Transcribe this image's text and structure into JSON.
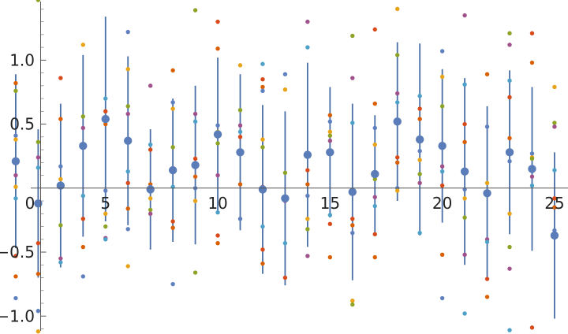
{
  "chart_data": {
    "type": "scatter",
    "title": "",
    "xlabel": "",
    "ylabel": "",
    "xlim": [
      0.3,
      25.6
    ],
    "ylim": [
      -1.14,
      1.47
    ],
    "x_ticks": [
      5,
      10,
      15,
      20,
      25
    ],
    "x_tick_labels": [
      "5",
      "10",
      "15",
      "20",
      "25"
    ],
    "y_ticks": [
      -1.0,
      -0.5,
      0.5,
      1.0
    ],
    "y_tick_labels": [
      "−1.0",
      "−0.5",
      "0.5",
      "1.0"
    ],
    "origin_label": "0",
    "grid": false,
    "legend": "none",
    "mean_color": "#5a7cb8",
    "errorbar_color": "#4a6ea6",
    "sample_colors": [
      "#d95f02",
      "#5e80bf",
      "#e8a317",
      "#8da325",
      "#a0518b",
      "#4da0c8",
      "#d84a1a"
    ],
    "means": {
      "x": [
        1,
        2,
        3,
        4,
        5,
        6,
        7,
        8,
        9,
        10,
        11,
        12,
        13,
        14,
        15,
        16,
        17,
        18,
        19,
        20,
        21,
        22,
        23,
        24,
        25
      ],
      "y": [
        0.21,
        -0.12,
        0.02,
        0.33,
        0.54,
        0.37,
        -0.01,
        0.14,
        0.18,
        0.42,
        0.28,
        -0.01,
        -0.08,
        0.26,
        0.28,
        -0.03,
        0.11,
        0.52,
        0.38,
        0.33,
        0.13,
        -0.04,
        0.28,
        0.15,
        -0.37
      ],
      "err": [
        0.68,
        0.58,
        0.64,
        0.71,
        0.8,
        0.66,
        0.47,
        0.56,
        0.62,
        0.6,
        0.61,
        0.66,
        0.68,
        0.72,
        0.51,
        0.69,
        0.46,
        0.62,
        0.75,
        0.6,
        0.73,
        0.68,
        0.64,
        0.64,
        0.65
      ]
    },
    "samples": [
      {
        "x": 1,
        "y": [
          0.82,
          0.41,
          0.38,
          0.76,
          0.1,
          -0.08,
          -0.53,
          -0.69,
          -0.86,
          0.01
        ]
      },
      {
        "x": 2,
        "y": [
          0.36,
          0.24,
          0.16,
          -0.43,
          -0.67,
          -0.96,
          -1.12,
          1.47
        ]
      },
      {
        "x": 3,
        "y": [
          0.86,
          0.54,
          0.17,
          0.07,
          -0.29,
          -0.55,
          -0.58
        ]
      },
      {
        "x": 4,
        "y": [
          1.12,
          0.56,
          0.47,
          -0.06,
          -0.24,
          -0.46,
          -0.69
        ]
      },
      {
        "x": 5,
        "y": [
          0.7,
          0.6,
          0.5,
          -0.02,
          -0.2,
          -0.3,
          -0.39,
          -0.4
        ]
      },
      {
        "x": 6,
        "y": [
          1.22,
          0.93,
          0.64,
          0.58,
          0.13,
          0.04,
          -0.16,
          -0.32,
          -0.61
        ]
      },
      {
        "x": 7,
        "y": [
          0.8,
          0.34,
          0.3,
          0.03,
          0.01,
          -0.08,
          -0.17,
          -0.2
        ]
      },
      {
        "x": 8,
        "y": [
          0.92,
          0.67,
          0.62,
          0.32,
          0.15,
          0.01,
          -0.26,
          -0.31,
          -0.75
        ]
      },
      {
        "x": 9,
        "y": [
          1.39,
          0.58,
          0.52,
          0.23,
          0.09,
          0.0,
          -0.1,
          -0.66
        ]
      },
      {
        "x": 10,
        "y": [
          1.3,
          1.09,
          0.49,
          0.44,
          0.35,
          0.1,
          -0.19,
          -0.37,
          -0.43
        ]
      },
      {
        "x": 11,
        "y": [
          0.96,
          0.61,
          0.49,
          0.44,
          0.4,
          0.03,
          -0.24
        ]
      },
      {
        "x": 12,
        "y": [
          0.97,
          0.85,
          0.79,
          0.76,
          0.38,
          0.32,
          0.01,
          -0.3,
          -0.48,
          -0.59
        ]
      },
      {
        "x": 13,
        "y": [
          0.89,
          0.77,
          0.12,
          -0.1,
          -0.43,
          -0.7
        ]
      },
      {
        "x": 14,
        "y": [
          1.3,
          1.1,
          0.14,
          0.03,
          -0.06,
          -0.24,
          -0.32,
          -0.53
        ]
      },
      {
        "x": 15,
        "y": [
          0.57,
          0.52,
          0.44,
          0.41,
          0.37,
          -0.21,
          -0.28,
          -0.54
        ]
      },
      {
        "x": 16,
        "y": [
          1.19,
          0.86,
          0.51,
          -0.24,
          -0.29,
          -0.35,
          -0.88,
          -0.91
        ]
      },
      {
        "x": 17,
        "y": [
          1.24,
          0.66,
          0.47,
          0.34,
          0.07,
          -0.07,
          -0.14,
          -0.36,
          -0.54
        ]
      },
      {
        "x": 18,
        "y": [
          1.4,
          1.04,
          0.74,
          0.67,
          0.24,
          0.2,
          0.0,
          -0.02
        ]
      },
      {
        "x": 19,
        "y": [
          0.72,
          0.62,
          0.54,
          0.29,
          0.22,
          0.11,
          0.04,
          -0.35
        ]
      },
      {
        "x": 20,
        "y": [
          1.07,
          0.87,
          0.64,
          0.17,
          0.13,
          0.02,
          -0.52,
          -0.86
        ]
      },
      {
        "x": 21,
        "y": [
          1.35,
          0.81,
          0.5,
          0.36,
          -0.01,
          -0.08,
          -0.23,
          -0.52,
          -0.98
        ]
      },
      {
        "x": 22,
        "y": [
          0.89,
          0.48,
          0.04,
          -0.03,
          -0.4,
          -0.42,
          -0.71,
          -0.85
        ]
      },
      {
        "x": 23,
        "y": [
          1.21,
          1.12,
          0.84,
          0.71,
          0.39,
          0.21,
          -0.2,
          -0.46,
          -0.63,
          -1.11
        ]
      },
      {
        "x": 24,
        "y": [
          1.21,
          0.98,
          0.27,
          0.24,
          0.23,
          0.09,
          0.02,
          -1.09
        ]
      },
      {
        "x": 25,
        "y": [
          0.79,
          0.51,
          0.48,
          0.14,
          -0.08,
          -0.15,
          -0.33
        ]
      }
    ]
  }
}
